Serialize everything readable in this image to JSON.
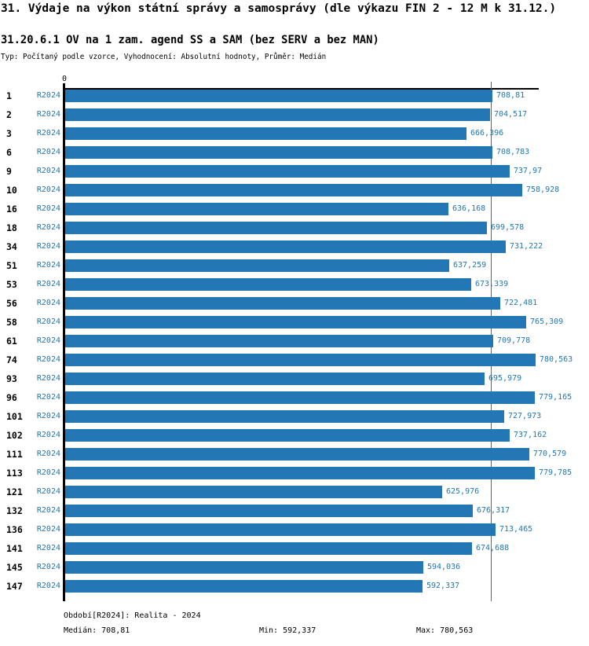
{
  "header": {
    "title": "31. Výdaje na výkon státní správy a samosprávy (dle výkazu FIN 2 - 12 M k 31.12.)",
    "subtitle": "31.20.6.1 OV na 1 zam. agend SS a SAM (bez SERV a bez MAN)",
    "meta": "Typ: Počítaný podle vzorce, Vyhodnocení: Absolutní hodnoty, Průměr: Medián"
  },
  "chart_data": {
    "type": "bar",
    "orientation": "horizontal",
    "origin_label": "0",
    "series_label": "R2024",
    "categories": [
      "1",
      "2",
      "3",
      "6",
      "9",
      "10",
      "16",
      "18",
      "34",
      "51",
      "53",
      "56",
      "58",
      "61",
      "74",
      "93",
      "96",
      "101",
      "102",
      "111",
      "113",
      "121",
      "132",
      "136",
      "141",
      "145",
      "147"
    ],
    "values": [
      708.81,
      704.517,
      666.396,
      708.783,
      737.97,
      758.928,
      636.168,
      699.578,
      731.222,
      637.259,
      673.339,
      722.481,
      765.309,
      709.778,
      780.563,
      695.979,
      779.165,
      727.973,
      737.162,
      770.579,
      779.785,
      625.976,
      676.317,
      713.465,
      674.688,
      594.036,
      592.337
    ],
    "value_labels": [
      "708,81",
      "704,517",
      "666,396",
      "708,783",
      "737,97",
      "758,928",
      "636,168",
      "699,578",
      "731,222",
      "637,259",
      "673,339",
      "722,481",
      "765,309",
      "709,778",
      "780,563",
      "695,979",
      "779,165",
      "727,973",
      "737,162",
      "770,579",
      "779,785",
      "625,976",
      "676,317",
      "713,465",
      "674,688",
      "594,036",
      "592,337"
    ],
    "median": 708.81,
    "min": 592.337,
    "max": 780.563,
    "xlim": [
      0,
      780.563
    ],
    "grid": false,
    "bar_color": "#2277b4",
    "median_line_color": "#1f77b4",
    "label_color": "#1f77b4"
  },
  "footer": {
    "period": "Období[R2024]: Realita - 2024",
    "median": "Medián: 708,81",
    "min": "Min: 592,337",
    "max": "Max: 780,563"
  }
}
